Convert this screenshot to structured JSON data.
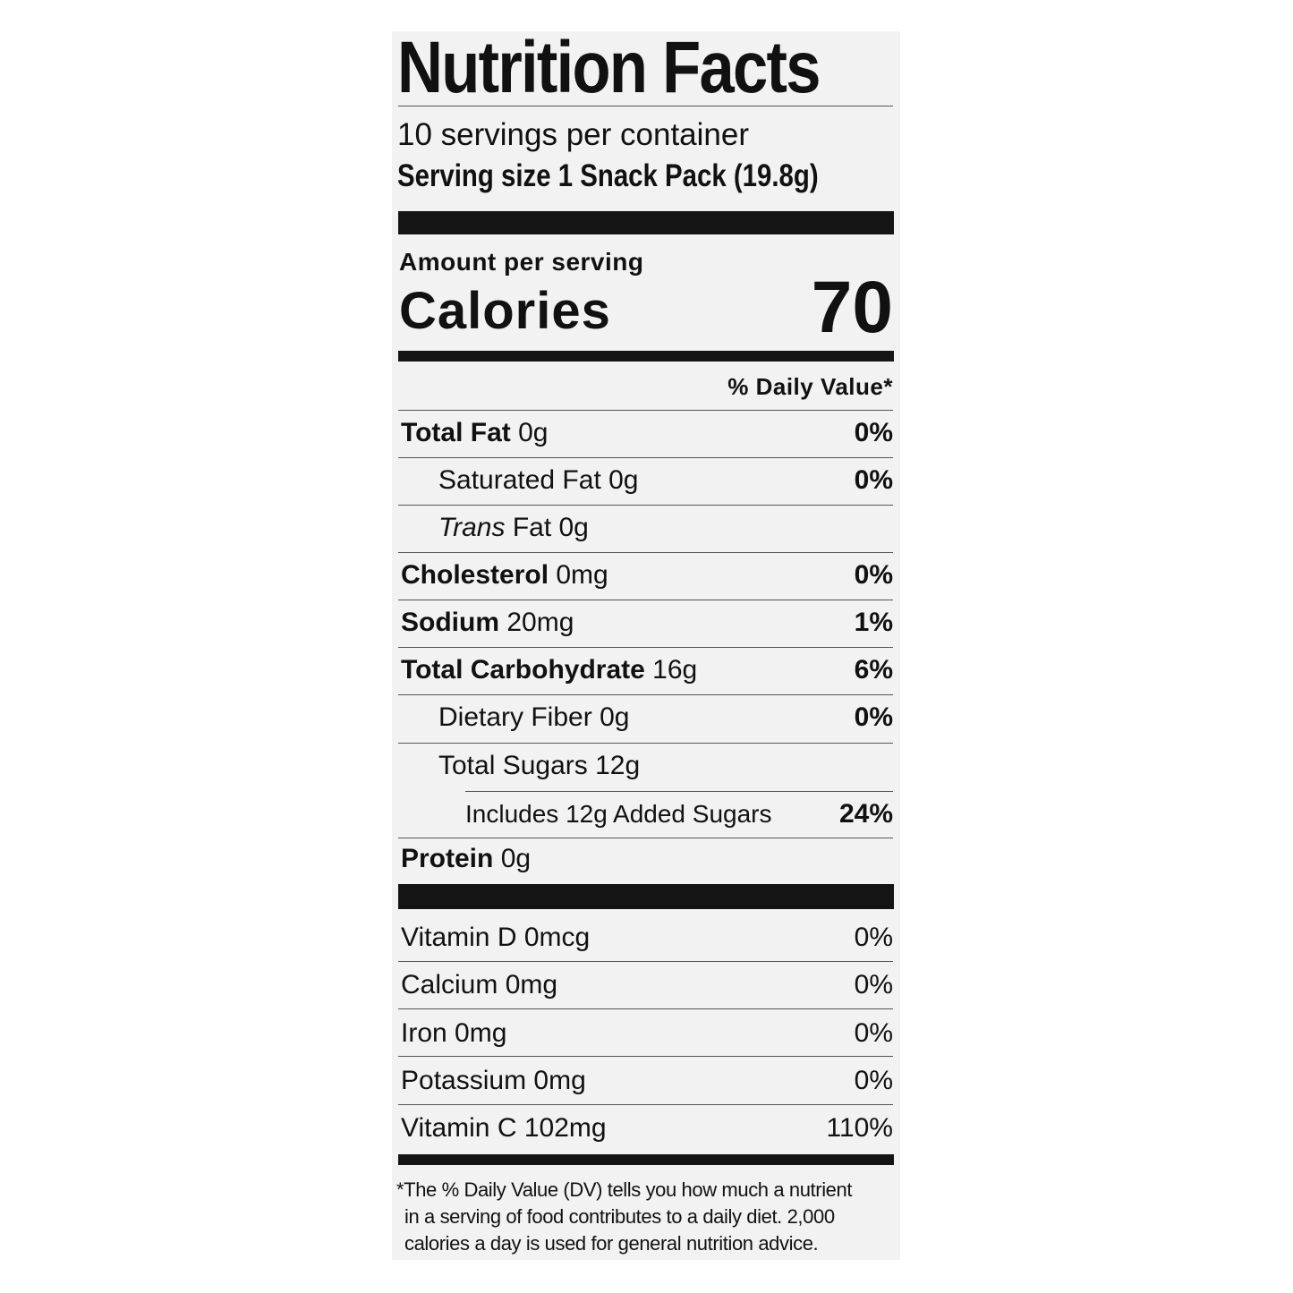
{
  "title": "Nutrition Facts",
  "servings_per_container": "10 servings per container",
  "serving_size": "Serving size 1 Snack Pack (19.8g)",
  "amount_per_serving": "Amount per serving",
  "calories_label": "Calories",
  "calories_value": "70",
  "daily_value_header": "% Daily Value*",
  "nutrients": [
    {
      "name": "Total Fat",
      "amount": "0g",
      "dv": "0%"
    },
    {
      "name": "Saturated Fat",
      "amount": "0g",
      "dv": "0%"
    },
    {
      "name": "Trans",
      "amount": "Fat 0g",
      "dv": ""
    },
    {
      "name": "Cholesterol",
      "amount": "0mg",
      "dv": "0%"
    },
    {
      "name": "Sodium",
      "amount": "20mg",
      "dv": "1%"
    },
    {
      "name": "Total Carbohydrate",
      "amount": "16g",
      "dv": "6%"
    },
    {
      "name": "Dietary Fiber",
      "amount": "0g",
      "dv": "0%"
    },
    {
      "name": "Total Sugars",
      "amount": "12g",
      "dv": ""
    },
    {
      "name": "Includes 12g Added Sugars",
      "amount": "",
      "dv": "24%"
    },
    {
      "name": "Protein",
      "amount": "0g",
      "dv": ""
    }
  ],
  "vitamins": [
    {
      "label": "Vitamin D 0mcg",
      "dv": "0%"
    },
    {
      "label": "Calcium 0mg",
      "dv": "0%"
    },
    {
      "label": "Iron 0mg",
      "dv": "0%"
    },
    {
      "label": "Potassium 0mg",
      "dv": "0%"
    },
    {
      "label": "Vitamin C 102mg",
      "dv": "110%"
    }
  ],
  "footnote": [
    "*The % Daily Value (DV) tells you how much a nutrient",
    "in a serving of food contributes to a daily diet. 2,000",
    "calories a day is used for general nutrition advice."
  ]
}
